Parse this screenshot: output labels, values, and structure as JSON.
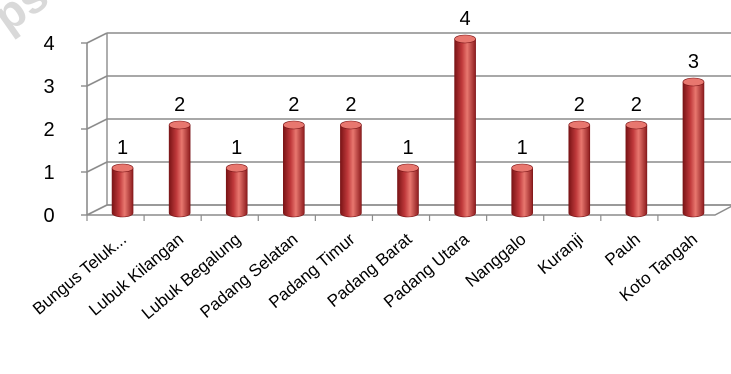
{
  "chart_data": {
    "type": "bar",
    "title": "",
    "xlabel": "",
    "ylabel": "",
    "ylim": [
      0,
      4
    ],
    "yticks": [
      0,
      1,
      2,
      3,
      4
    ],
    "grid": true,
    "legend": "none",
    "style": "3d-cylinder",
    "bar_color": "#c0393b",
    "bar_dark": "#7a1416",
    "bar_light": "#e8776f",
    "categories": [
      "Bungus Teluk...",
      "Lubuk Kilangan",
      "Lubuk Begalung",
      "Padang Selatan",
      "Padang Timur",
      "Padang Barat",
      "Padang Utara",
      "Nanggalo",
      "Kuranji",
      "Pauh",
      "Koto Tangah"
    ],
    "values": [
      1,
      2,
      1,
      2,
      2,
      1,
      4,
      1,
      2,
      2,
      3
    ],
    "data_labels": [
      "1",
      "2",
      "1",
      "2",
      "2",
      "1",
      "4",
      "1",
      "2",
      "2",
      "3"
    ]
  },
  "watermark": {
    "text": "ps",
    "color": "#d9d9d9"
  }
}
